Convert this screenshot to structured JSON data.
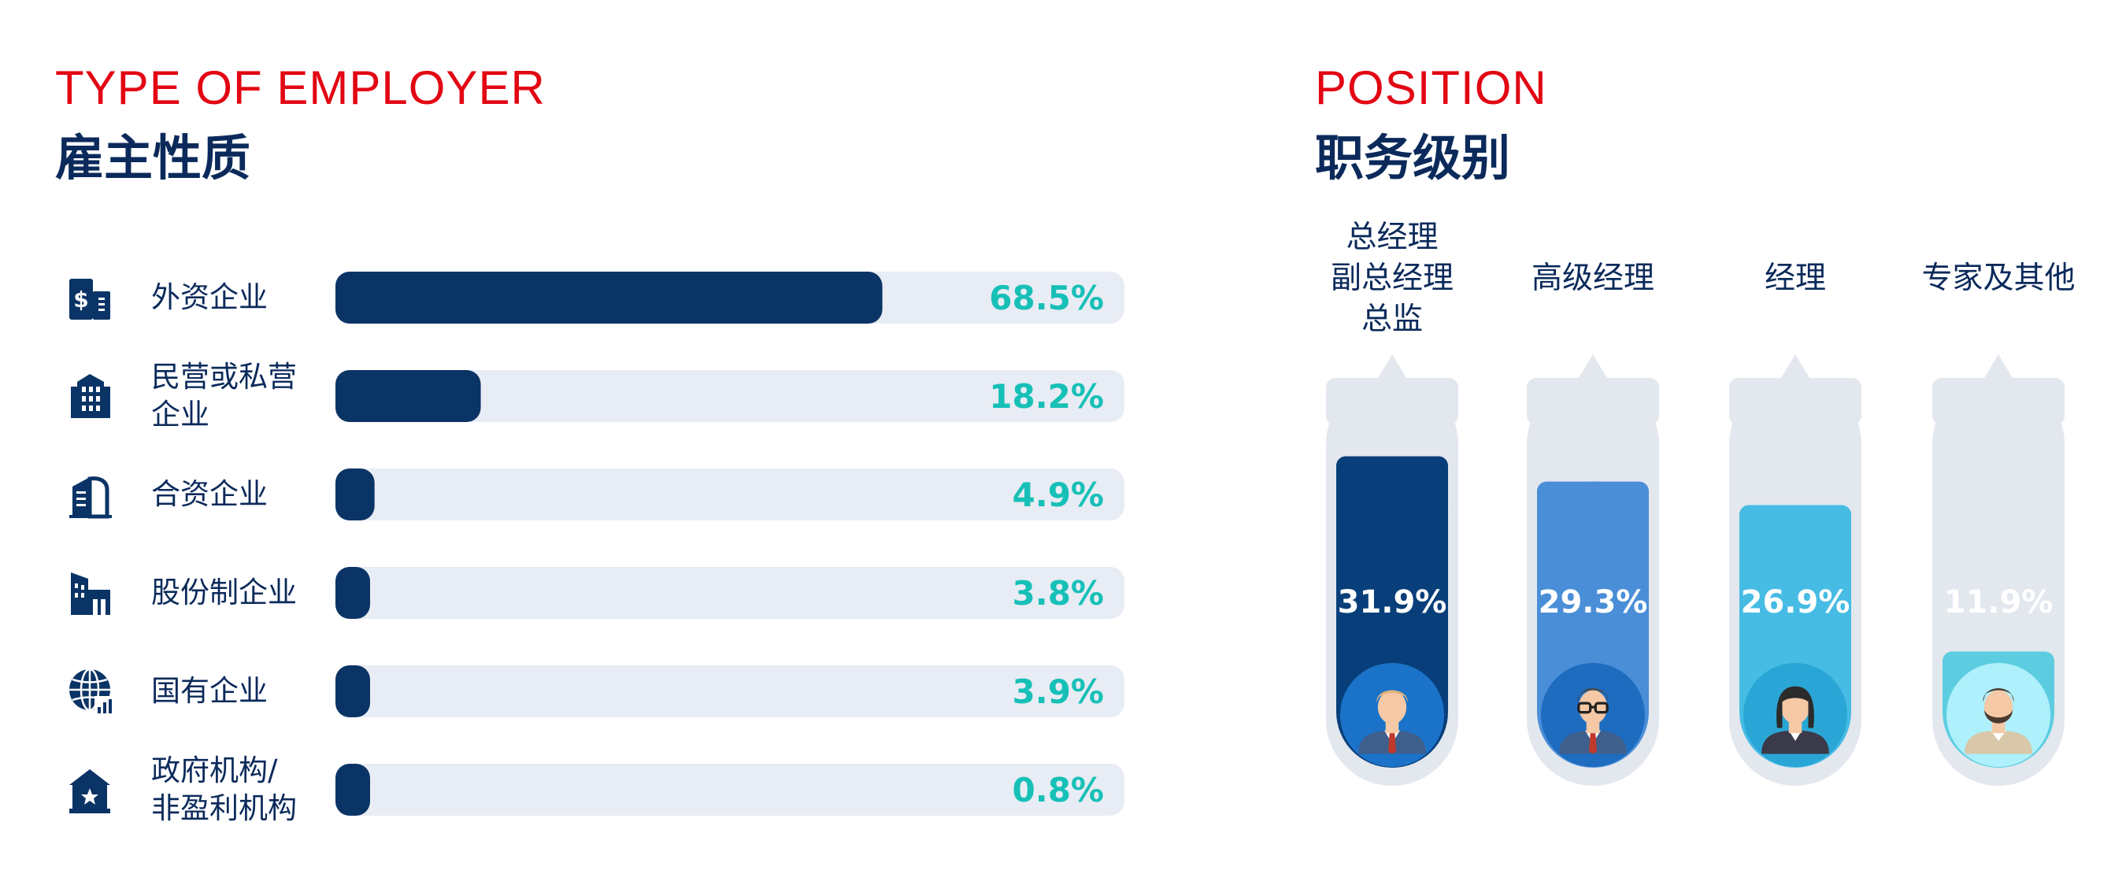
{
  "employer_section": {
    "title_en": "TYPE OF EMPLOYER",
    "title_cn": "雇主性质"
  },
  "position_section": {
    "title_en": "POSITION",
    "title_cn": "职务级别"
  },
  "colors": {
    "title_red": "#e20613",
    "navy": "#0b3466",
    "track": "#e8ecf4",
    "percent_teal": "#17c0b7",
    "tube": "#e3e7ee",
    "position_series": [
      "#083f7a",
      "#4a8ed8",
      "#46bce4",
      "#5ccde0"
    ]
  },
  "chart_data": [
    {
      "type": "bar",
      "orientation": "horizontal",
      "title": "TYPE OF EMPLOYER 雇主性质",
      "unit": "%",
      "xlim": [
        0,
        100
      ],
      "categories": [
        "外资企业",
        "民营或私营企业",
        "合资企业",
        "股份制企业",
        "国有企业",
        "政府机构/非盈利机构"
      ],
      "category_lines": [
        [
          "外资企业"
        ],
        [
          "民营或私营",
          "企业"
        ],
        [
          "合资企业"
        ],
        [
          "股份制企业"
        ],
        [
          "国有企业"
        ],
        [
          "政府机构/",
          "非盈利机构"
        ]
      ],
      "icons": [
        "dollar-building-icon",
        "office-building-icon",
        "factory-building-icon",
        "corporate-building-icon",
        "globe-chart-icon",
        "government-building-icon"
      ],
      "values": [
        68.5,
        18.2,
        4.9,
        3.8,
        3.9,
        0.8
      ],
      "value_labels": [
        "68.5%",
        "18.2%",
        "4.9%",
        "3.8%",
        "3.9%",
        "0.8%"
      ]
    },
    {
      "type": "bar",
      "orientation": "vertical",
      "title": "POSITION 职务级别",
      "unit": "%",
      "categories": [
        "总经理副总经理总监",
        "高级经理",
        "经理",
        "专家及其他"
      ],
      "category_lines": [
        [
          "总经理",
          "副总经理",
          "总监"
        ],
        [
          "高级经理"
        ],
        [
          "经理"
        ],
        [
          "专家及其他"
        ]
      ],
      "icons": [
        "businessman-icon",
        "glasses-man-icon",
        "businesswoman-icon",
        "bearded-man-icon"
      ],
      "values": [
        31.9,
        29.3,
        26.9,
        11.9
      ],
      "value_labels": [
        "31.9%",
        "29.3%",
        "26.9%",
        "11.9%"
      ]
    }
  ]
}
